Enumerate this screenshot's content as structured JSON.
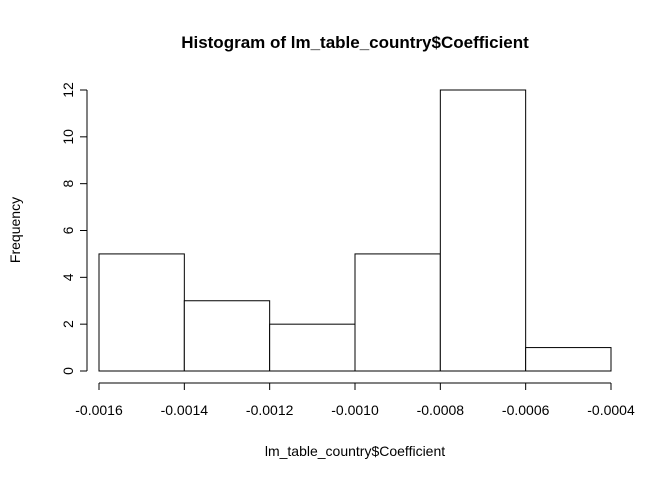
{
  "chart_data": {
    "type": "bar",
    "title": "Histogram of lm_table_country$Coefficient",
    "xlabel": "lm_table_country$Coefficient",
    "ylabel": "Frequency",
    "bins": [
      {
        "start": -0.0016,
        "end": -0.0014,
        "value": 5
      },
      {
        "start": -0.0014,
        "end": -0.0012,
        "value": 3
      },
      {
        "start": -0.0012,
        "end": -0.001,
        "value": 2
      },
      {
        "start": -0.001,
        "end": -0.0008,
        "value": 5
      },
      {
        "start": -0.0008,
        "end": -0.0006,
        "value": 12
      },
      {
        "start": -0.0006,
        "end": -0.0004,
        "value": 1
      }
    ],
    "xlim": [
      -0.0016,
      -0.0004
    ],
    "ylim": [
      0,
      12
    ],
    "x_ticks": [
      "-0.0016",
      "-0.0014",
      "-0.0012",
      "-0.0010",
      "-0.0008",
      "-0.0006",
      "-0.0004"
    ],
    "y_ticks": [
      "0",
      "2",
      "4",
      "6",
      "8",
      "10",
      "12"
    ],
    "grid": false
  }
}
